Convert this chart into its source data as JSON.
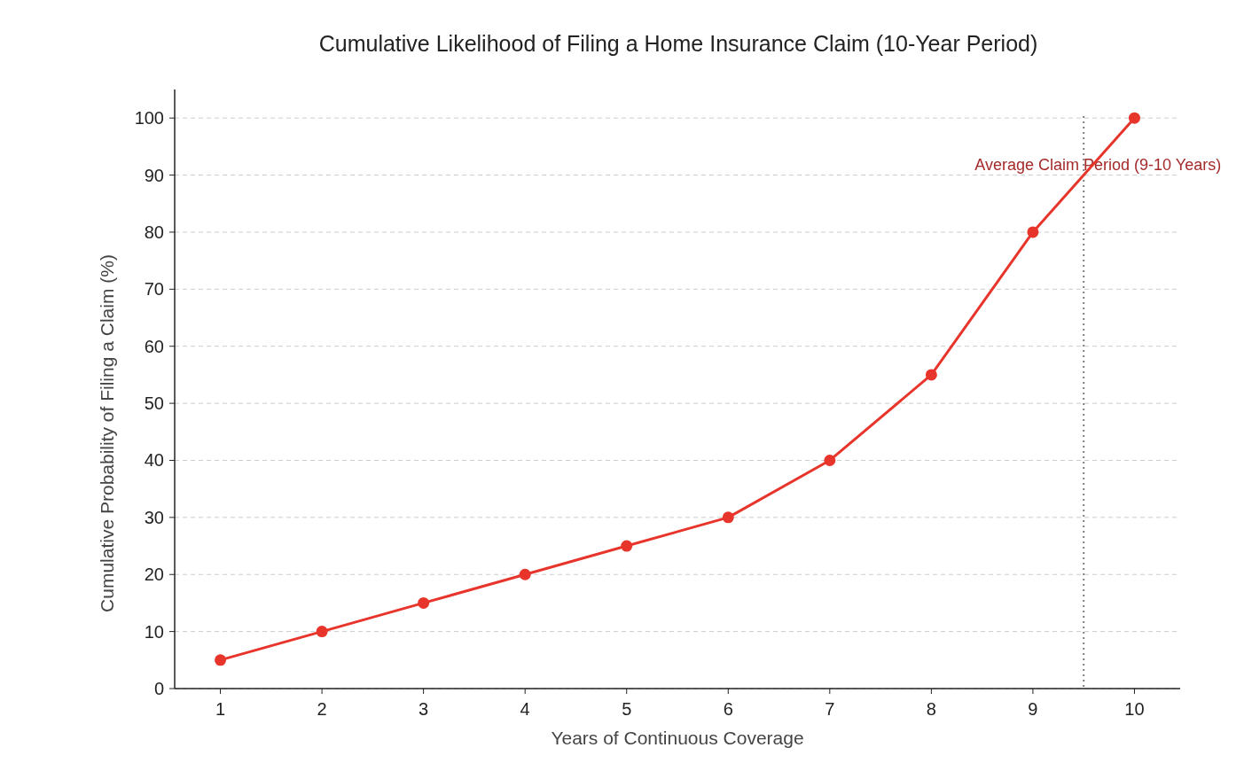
{
  "chart_data": {
    "type": "line",
    "title": "Cumulative Likelihood of Filing a Home Insurance Claim (10-Year Period)",
    "xlabel": "Years of Continuous Coverage",
    "ylabel": "Cumulative Probability of Filing a Claim (%)",
    "x": [
      1,
      2,
      3,
      4,
      5,
      6,
      7,
      8,
      9,
      10
    ],
    "series": [
      {
        "color": "#e8352b",
        "values": [
          5,
          10,
          15,
          20,
          25,
          30,
          40,
          55,
          80,
          100
        ]
      }
    ],
    "xlim": [
      0.55,
      10.45
    ],
    "xticks": [
      1,
      2,
      3,
      4,
      5,
      6,
      7,
      8,
      9,
      10
    ],
    "ylim": [
      0,
      105
    ],
    "yticks": [
      0,
      10,
      20,
      30,
      40,
      50,
      60,
      70,
      80,
      90,
      100
    ],
    "grid": "y",
    "marker": "circle",
    "line_style": "solid",
    "ref_lines": [
      {
        "axis": "x",
        "value": 9.5,
        "label": "Average Claim Period (9-10 Years)",
        "color": "#808080",
        "line_style": "dotted"
      }
    ]
  }
}
